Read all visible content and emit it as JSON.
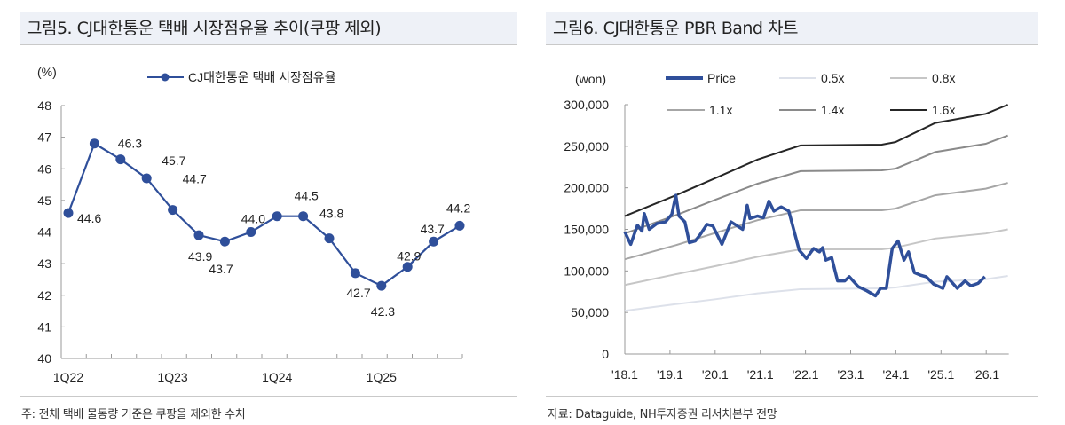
{
  "left_panel": {
    "title": "그림5. CJ대한통운 택배 시장점유율 추이(쿠팡 제외)",
    "footnote": "주: 전체 택배 물동량 기준은 쿠팡을 제외한 수치"
  },
  "right_panel": {
    "title": "그림6. CJ대한통운 PBR Band 차트",
    "footnote": "자료: Dataguide, NH투자증권 리서치본부 전망"
  },
  "chart_data": [
    {
      "type": "line",
      "unit_label": "(%)",
      "categories": [
        "1Q22",
        "2Q22",
        "3Q22",
        "4Q22",
        "1Q23",
        "2Q23",
        "3Q23",
        "4Q23",
        "1Q24",
        "2Q24",
        "3Q24",
        "4Q24",
        "1Q25",
        "2Q25",
        "3Q25",
        "4Q25"
      ],
      "tick_labels": [
        "1Q22",
        "",
        "",
        "",
        "1Q23",
        "",
        "",
        "",
        "1Q24",
        "",
        "",
        "",
        "1Q25",
        "",
        "",
        ""
      ],
      "series": [
        {
          "name": "CJ대한통운 택배 시장점유율",
          "color": "#2f4f9a",
          "values": [
            44.6,
            46.8,
            46.3,
            45.7,
            44.7,
            43.9,
            43.7,
            44.0,
            44.5,
            44.5,
            43.8,
            42.7,
            42.3,
            42.9,
            43.7,
            44.2
          ],
          "data_labels": [
            "44.6",
            "",
            "46.3",
            "45.7",
            "44.7",
            "43.9",
            "43.7",
            "44.0",
            "",
            "44.5",
            "43.8",
            "42.7",
            "42.3",
            "42.9",
            "43.7",
            "44.2"
          ]
        }
      ],
      "ylim": [
        40,
        48
      ],
      "yticks": [
        "40",
        "41",
        "42",
        "43",
        "44",
        "45",
        "46",
        "47",
        "48"
      ],
      "legend": "top",
      "grid": false
    },
    {
      "type": "line",
      "unit_label": "(won)",
      "xlim": [
        2018.0,
        2026.5
      ],
      "xticks": [
        "'18.1",
        "'19.1",
        "'20.1",
        "'21.1",
        "'22.1",
        "'23.1",
        "'24.1",
        "'25.1",
        "'26.1"
      ],
      "ylim": [
        0,
        300000
      ],
      "yticks": [
        "0",
        "50,000",
        "100,000",
        "150,000",
        "200,000",
        "250,000",
        "300,000"
      ],
      "legend": "top",
      "grid": false,
      "band_x": [
        2018.0,
        2019.13,
        2020.02,
        2020.94,
        2021.89,
        2023.69,
        2023.99,
        2024.87,
        2025.99,
        2026.48
      ],
      "series": [
        {
          "name": "Price",
          "color": "#2f4f9a",
          "x": [
            2018.0,
            2018.13,
            2018.28,
            2018.38,
            2018.43,
            2018.54,
            2018.71,
            2018.9,
            2019.04,
            2019.13,
            2019.2,
            2019.33,
            2019.43,
            2019.56,
            2019.66,
            2019.82,
            2019.95,
            2020.15,
            2020.35,
            2020.61,
            2020.71,
            2020.77,
            2020.94,
            2021.07,
            2021.19,
            2021.3,
            2021.46,
            2021.63,
            2021.86,
            2022.02,
            2022.18,
            2022.31,
            2022.38,
            2022.45,
            2022.58,
            2022.71,
            2022.87,
            2022.97,
            2023.17,
            2023.36,
            2023.55,
            2023.66,
            2023.79,
            2023.92,
            2024.05,
            2024.18,
            2024.28,
            2024.41,
            2024.54,
            2024.67,
            2024.84,
            2025.04,
            2025.13,
            2025.36,
            2025.53,
            2025.66,
            2025.82,
            2025.97
          ],
          "values": [
            147000,
            132000,
            155000,
            148000,
            169000,
            150000,
            157000,
            159000,
            168000,
            191000,
            166000,
            159000,
            134000,
            136000,
            143000,
            156000,
            154000,
            132000,
            159000,
            150000,
            179000,
            163000,
            166000,
            164000,
            184000,
            172000,
            177000,
            172000,
            125000,
            115000,
            127000,
            123000,
            128000,
            113000,
            116000,
            88000,
            88000,
            93000,
            81000,
            76000,
            70000,
            79000,
            79000,
            127000,
            136000,
            113000,
            123000,
            98000,
            95000,
            93000,
            84000,
            79000,
            93000,
            79000,
            88000,
            82000,
            85000,
            93000
          ]
        },
        {
          "name": "0.5x",
          "color": "#dde1ea",
          "values": [
            52000,
            60000,
            66000,
            73000,
            78000,
            79000,
            80000,
            87000,
            90000,
            94000
          ]
        },
        {
          "name": "0.8x",
          "color": "#c6c6c6",
          "values": [
            83000,
            96000,
            106000,
            117000,
            126000,
            126000,
            128000,
            139000,
            145000,
            150000
          ]
        },
        {
          "name": "1.1x",
          "color": "#a6a6a6",
          "values": [
            114000,
            131000,
            146000,
            161000,
            173000,
            173000,
            175000,
            191000,
            199000,
            206000
          ]
        },
        {
          "name": "1.4x",
          "color": "#8a8a8a",
          "values": [
            145000,
            167000,
            186000,
            205000,
            220000,
            221000,
            223000,
            243000,
            253000,
            263000
          ]
        },
        {
          "name": "1.6x",
          "color": "#262626",
          "values": [
            166000,
            191000,
            212000,
            234000,
            251000,
            252000,
            255000,
            278000,
            289000,
            300000
          ]
        }
      ]
    }
  ]
}
